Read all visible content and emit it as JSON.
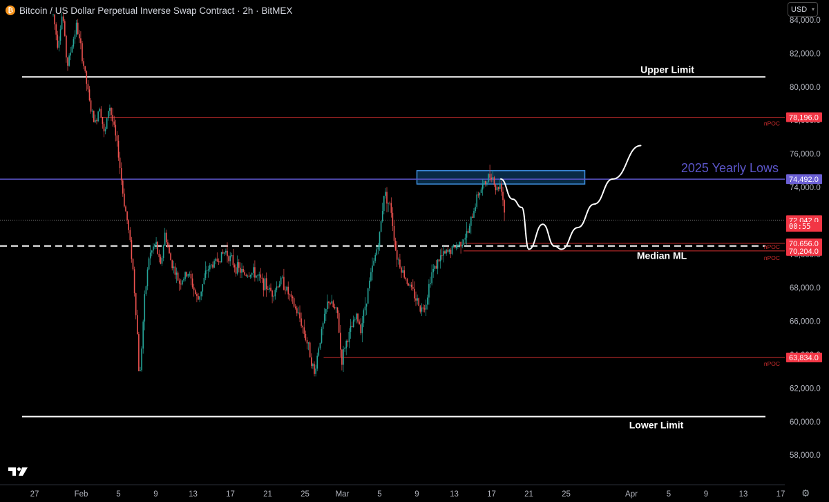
{
  "header": {
    "title": "Bitcoin / US Dollar Perpetual Inverse Swap Contract · 2h · BitMEX",
    "coin_symbol": "₿"
  },
  "currency_selector": {
    "value": "USD"
  },
  "colors": {
    "background": "#000000",
    "up_candle": "#26a69a",
    "down_candle": "#ef5350",
    "npoc_line": "#d32f2f",
    "yearly_lows": "#5b55c9",
    "limit_line": "#ffffff",
    "zone_border": "#3d8fe0"
  },
  "icons": {
    "logo": "tradingview-logo",
    "settings": "gear-icon",
    "dropdown": "chevron-down-icon"
  },
  "chart_data": {
    "type": "candlestick",
    "symbol": "Bitcoin / US Dollar Perpetual Inverse Swap Contract",
    "timeframe": "2h",
    "exchange": "BitMEX",
    "y_axis": {
      "ylim": [
        56000,
        85000
      ],
      "ticks": [
        58000,
        60000,
        62000,
        64000,
        66000,
        68000,
        70000,
        72000,
        74000,
        76000,
        78000,
        80000,
        82000,
        84000
      ],
      "tick_labels": [
        "58,000.0",
        "60,000.0",
        "62,000.0",
        "64,000.0",
        "66,000.0",
        "68,000.0",
        "70,000.0",
        "72,000.0",
        "74,000.0",
        "76,000.0",
        "78,000.0",
        "80,000.0",
        "82,000.0",
        "84,000.0"
      ]
    },
    "x_axis": {
      "range": [
        "2025-01-25",
        "2025-04-26"
      ],
      "ticks": [
        {
          "date": "2025-01-27",
          "label": "27"
        },
        {
          "date": "2025-02-01",
          "label": "Feb"
        },
        {
          "date": "2025-02-05",
          "label": "5"
        },
        {
          "date": "2025-02-09",
          "label": "9"
        },
        {
          "date": "2025-02-13",
          "label": "13"
        },
        {
          "date": "2025-02-17",
          "label": "17"
        },
        {
          "date": "2025-02-21",
          "label": "21"
        },
        {
          "date": "2025-02-25",
          "label": "25"
        },
        {
          "date": "2025-03-01",
          "label": "Mar"
        },
        {
          "date": "2025-03-05",
          "label": "5"
        },
        {
          "date": "2025-03-09",
          "label": "9"
        },
        {
          "date": "2025-03-13",
          "label": "13"
        },
        {
          "date": "2025-03-17",
          "label": "17"
        },
        {
          "date": "2025-03-21",
          "label": "21"
        },
        {
          "date": "2025-03-25",
          "label": "25"
        },
        {
          "date": "2025-04-01",
          "label": "Apr"
        },
        {
          "date": "2025-04-05",
          "label": "5"
        },
        {
          "date": "2025-04-09",
          "label": "9"
        },
        {
          "date": "2025-04-13",
          "label": "13"
        },
        {
          "date": "2025-04-17",
          "label": "17"
        }
      ]
    },
    "price_path": [
      [
        "2025-01-29 00:00",
        84300
      ],
      [
        "2025-01-29 12:00",
        82500
      ],
      [
        "2025-01-30 00:00",
        84500
      ],
      [
        "2025-01-30 12:00",
        81200
      ],
      [
        "2025-01-31 12:00",
        83700
      ],
      [
        "2025-02-01 00:00",
        82200
      ],
      [
        "2025-02-01 12:00",
        80500
      ],
      [
        "2025-02-02 00:00",
        78700
      ],
      [
        "2025-02-02 12:00",
        77800
      ],
      [
        "2025-02-03 00:00",
        79000
      ],
      [
        "2025-02-03 12:00",
        77000
      ],
      [
        "2025-02-04 00:00",
        79000
      ],
      [
        "2025-02-04 12:00",
        77600
      ],
      [
        "2025-02-05 00:00",
        76000
      ],
      [
        "2025-02-05 12:00",
        73500
      ],
      [
        "2025-02-06 00:00",
        71800
      ],
      [
        "2025-02-06 12:00",
        69500
      ],
      [
        "2025-02-07 00:00",
        65500
      ],
      [
        "2025-02-07 06:00",
        62200
      ],
      [
        "2025-02-07 10:00",
        63800
      ],
      [
        "2025-02-07 18:00",
        67000
      ],
      [
        "2025-02-08 06:00",
        69800
      ],
      [
        "2025-02-09 00:00",
        70700
      ],
      [
        "2025-02-09 12:00",
        69200
      ],
      [
        "2025-02-10 00:00",
        71300
      ],
      [
        "2025-02-10 12:00",
        69800
      ],
      [
        "2025-02-11 12:00",
        68300
      ],
      [
        "2025-02-12 12:00",
        68900
      ],
      [
        "2025-02-13 12:00",
        67200
      ],
      [
        "2025-02-14 12:00",
        69100
      ],
      [
        "2025-02-15 12:00",
        69600
      ],
      [
        "2025-02-16 12:00",
        70200
      ],
      [
        "2025-02-17 12:00",
        69300
      ],
      [
        "2025-02-18 12:00",
        68800
      ],
      [
        "2025-02-19 12:00",
        68900
      ],
      [
        "2025-02-20 12:00",
        68300
      ],
      [
        "2025-02-21 12:00",
        67700
      ],
      [
        "2025-02-22 12:00",
        68500
      ],
      [
        "2025-02-23 12:00",
        67300
      ],
      [
        "2025-02-24 12:00",
        66100
      ],
      [
        "2025-02-25 12:00",
        64200
      ],
      [
        "2025-02-26 00:00",
        62800
      ],
      [
        "2025-02-26 12:00",
        64600
      ],
      [
        "2025-02-27 12:00",
        67300
      ],
      [
        "2025-02-28 12:00",
        66400
      ],
      [
        "2025-02-28 22:00",
        63500
      ],
      [
        "2025-03-01 06:00",
        64500
      ],
      [
        "2025-03-02 12:00",
        66300
      ],
      [
        "2025-03-03 00:00",
        65600
      ],
      [
        "2025-03-04 00:00",
        68600
      ],
      [
        "2025-03-05 00:00",
        71100
      ],
      [
        "2025-03-05 12:00",
        73800
      ],
      [
        "2025-03-06 06:00",
        72600
      ],
      [
        "2025-03-06 18:00",
        70100
      ],
      [
        "2025-03-07 12:00",
        68900
      ],
      [
        "2025-03-08 12:00",
        67800
      ],
      [
        "2025-03-09 12:00",
        66700
      ],
      [
        "2025-03-10 00:00",
        67200
      ],
      [
        "2025-03-10 12:00",
        68800
      ],
      [
        "2025-03-11 12:00",
        69800
      ],
      [
        "2025-03-12 12:00",
        70200
      ],
      [
        "2025-03-13 12:00",
        70600
      ],
      [
        "2025-03-14 12:00",
        71300
      ],
      [
        "2025-03-15 00:00",
        72400
      ],
      [
        "2025-03-15 12:00",
        73600
      ],
      [
        "2025-03-16 12:00",
        74400
      ],
      [
        "2025-03-17 00:00",
        74900
      ],
      [
        "2025-03-17 12:00",
        73800
      ],
      [
        "2025-03-18 00:00",
        74300
      ],
      [
        "2025-03-18 12:00",
        72042
      ]
    ],
    "projection_path": [
      [
        "2025-03-18 00:00",
        74500
      ],
      [
        "2025-03-19 06:00",
        73300
      ],
      [
        "2025-03-20 06:00",
        72800
      ],
      [
        "2025-03-21 00:00",
        70300
      ],
      [
        "2025-03-22 12:00",
        71800
      ],
      [
        "2025-03-23 18:00",
        70500
      ],
      [
        "2025-03-24 12:00",
        70300
      ],
      [
        "2025-03-26 06:00",
        71600
      ],
      [
        "2025-03-28 00:00",
        73000
      ],
      [
        "2025-03-30 00:00",
        74500
      ],
      [
        "2025-04-02 00:00",
        76500
      ]
    ],
    "levels": [
      {
        "label": "Upper Limit",
        "price": 80600,
        "style": "solid",
        "color": "#ffffff",
        "from": "2025-01-25",
        "to": "2025-04-19"
      },
      {
        "label": "Lower Limit",
        "price": 60300,
        "style": "solid",
        "color": "#ffffff",
        "from": "2025-01-25",
        "to": "2025-04-19"
      },
      {
        "label": "Median ML",
        "price": 70500,
        "style": "dashed",
        "color": "#ffffff",
        "from": "2025-01-25",
        "to": "2025-04-19"
      },
      {
        "label": "2025 Yearly Lows",
        "price": 74492,
        "style": "solid",
        "color": "#5b55c9",
        "from": "2025-01-25",
        "to": "2025-04-19"
      }
    ],
    "npoc_levels": [
      {
        "label": "nPOC",
        "price": 78196,
        "from": "2025-02-03"
      },
      {
        "label": "nPOC",
        "price": 70656,
        "from": "2025-03-14"
      },
      {
        "label": "nPOC",
        "price": 70204,
        "from": "2025-03-14"
      },
      {
        "label": "nPOC",
        "price": 63834,
        "from": "2025-02-27"
      }
    ],
    "zone": {
      "from": "2025-03-09",
      "to": "2025-03-27",
      "low": 74200,
      "high": 75000
    },
    "last_price": {
      "value": 72042,
      "label": "72,042.0",
      "countdown": "00:55"
    },
    "price_tags": [
      {
        "price": 78196,
        "label": "78,196.0",
        "color": "#f23645"
      },
      {
        "price": 74492,
        "label": "74,492.0",
        "color": "#6b5fd3"
      },
      {
        "price": 72042,
        "label": "72,042.0",
        "color": "#f23645"
      },
      {
        "price": 70656,
        "label": "70,656.0",
        "color": "#f23645"
      },
      {
        "price": 70204,
        "label": "70,204.0",
        "color": "#f23645"
      },
      {
        "price": 63834,
        "label": "63,834.0",
        "color": "#f23645"
      }
    ]
  }
}
